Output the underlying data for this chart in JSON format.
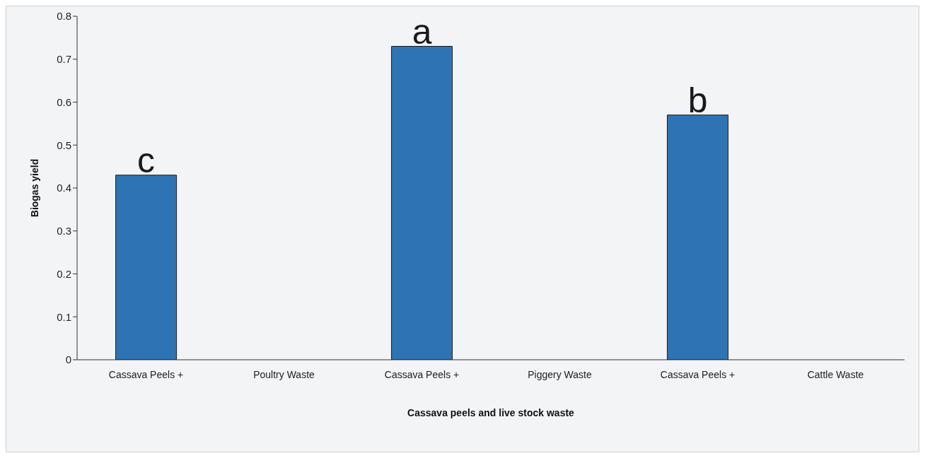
{
  "chart_data": {
    "type": "bar",
    "xlabel": "Cassava peels and live stock waste",
    "ylabel": "Biogas yield",
    "categories": [
      "Cassava Peels +",
      "Poultry Waste",
      "Cassava Peels +",
      "Piggery Waste",
      "Cassava Peels +",
      "Cattle Waste"
    ],
    "values": [
      0.43,
      null,
      0.73,
      null,
      0.57,
      null
    ],
    "value_labels": [
      "c",
      null,
      "a",
      null,
      "b",
      null
    ],
    "color": "#2e74b5",
    "ylim": [
      0,
      0.8
    ],
    "yticks": [
      0,
      0.1,
      0.2,
      0.3,
      0.4,
      0.5,
      0.6,
      0.7,
      0.8
    ]
  }
}
